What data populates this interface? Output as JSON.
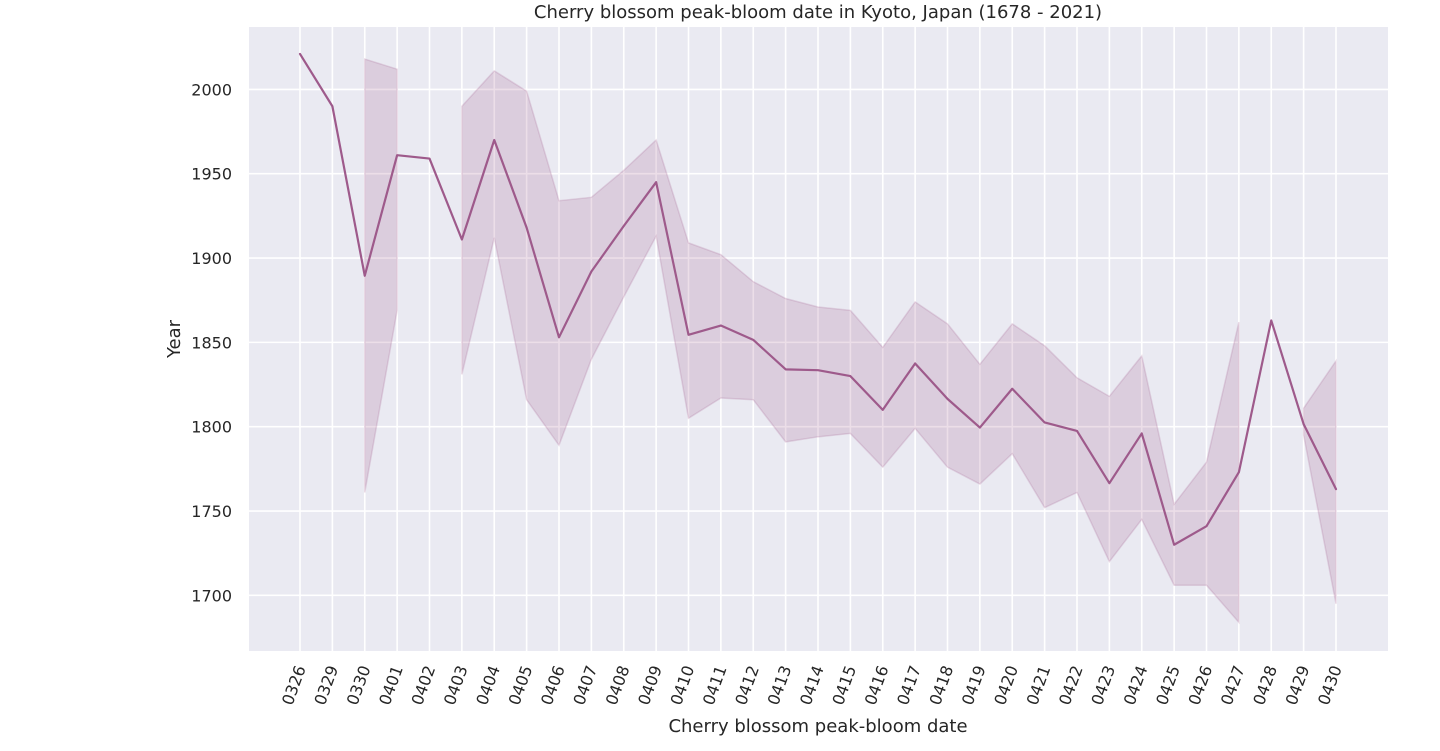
{
  "chart_data": {
    "type": "line",
    "title": "Cherry blossom peak-bloom date in Kyoto, Japan (1678 - 2021)",
    "xlabel": "Cherry blossom peak-bloom date",
    "ylabel": "Year",
    "categories": [
      "0326",
      "0329",
      "0330",
      "0401",
      "0402",
      "0403",
      "0404",
      "0405",
      "0406",
      "0407",
      "0408",
      "0409",
      "0410",
      "0411",
      "0412",
      "0413",
      "0414",
      "0415",
      "0416",
      "0417",
      "0418",
      "0419",
      "0420",
      "0421",
      "0422",
      "0423",
      "0424",
      "0425",
      "0426",
      "0427",
      "0428",
      "0429",
      "0430"
    ],
    "series": [
      {
        "values": [
          2021,
          1990,
          1889.5,
          1961,
          1959,
          1911,
          1970,
          1918,
          1853,
          1892,
          1919,
          1945,
          1854.5,
          1860,
          1851.5,
          1834,
          1833.5,
          1830,
          1810,
          1837.5,
          1816.5,
          1799.5,
          1822.5,
          1802.5,
          1797.5,
          1766.5,
          1796,
          1730,
          1741,
          1773,
          1863,
          1801.5,
          1763
        ],
        "ci_low": [
          null,
          null,
          1761,
          1869,
          null,
          1831,
          1912,
          1816,
          1789,
          1840,
          1877,
          1913,
          1805,
          1817,
          1816,
          1791,
          1794,
          1796,
          1776,
          1799,
          1776,
          1766,
          1784,
          1752,
          1761,
          1720,
          1745,
          1706,
          1706,
          1684,
          null,
          1795,
          1695
        ],
        "ci_high": [
          null,
          null,
          2018,
          2012,
          null,
          1990,
          2011,
          1999,
          1934,
          1936,
          1952,
          1970,
          1909,
          1902,
          1886,
          1876,
          1871,
          1869,
          1847,
          1874,
          1861,
          1837,
          1861,
          1848,
          1829,
          1818,
          1842,
          1754,
          1779,
          1862,
          null,
          1811,
          1839
        ]
      }
    ],
    "ylim": [
      1667,
      2037
    ],
    "yticks": [
      1700,
      1750,
      1800,
      1850,
      1900,
      1950,
      2000
    ],
    "yticklabels": [
      "1700",
      "1750",
      "1800",
      "1850",
      "1900",
      "1950",
      "2000"
    ],
    "grid": true,
    "colors": {
      "line": "#9e5a8b",
      "band": "#9e5a8b",
      "plot_background": "#eaeaf2",
      "grid": "#ffffff",
      "text": "#262626"
    }
  }
}
